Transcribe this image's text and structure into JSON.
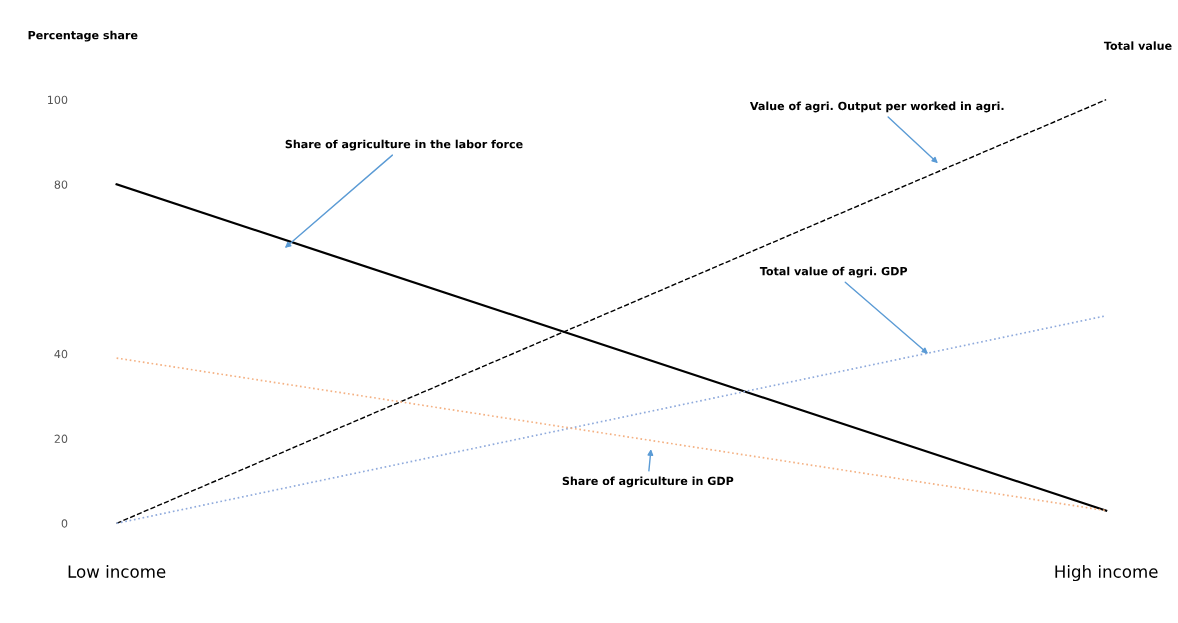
{
  "chart_data": {
    "type": "line",
    "ylabel": "Percentage share",
    "y2label": "Total value",
    "categories": [
      "Low income",
      "High income"
    ],
    "series": [
      {
        "name": "Share of agriculture in the labor force",
        "color": "#000000",
        "line_style": "solid",
        "values": [
          80,
          3
        ]
      },
      {
        "name": "Value of agri. Output per worked in agri.",
        "color": "#000000",
        "line_style": "dashed",
        "values": [
          0,
          100
        ]
      },
      {
        "name": "Total value of agri. GDP",
        "color": "#8faadc",
        "line_style": "dotted",
        "values": [
          0,
          49
        ]
      },
      {
        "name": "Share of agriculture in GDP",
        "color": "#f4b183",
        "line_style": "dotted",
        "values": [
          39,
          3
        ]
      }
    ],
    "ylim": [
      0,
      100
    ],
    "yticks": [
      0,
      20,
      40,
      80,
      100
    ],
    "grid": false,
    "legend": false,
    "marker": "none"
  }
}
